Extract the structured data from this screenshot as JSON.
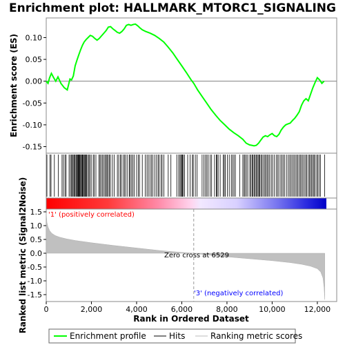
{
  "chart_data": {
    "type": "line",
    "title": "Enrichment plot: HALLMARK_MTORC1_SIGNALING",
    "x_range": [
      0,
      12400
    ],
    "x_ticks": [
      0,
      2000,
      4000,
      6000,
      8000,
      10000,
      12000
    ],
    "x_tick_labels": [
      "0",
      "2,000",
      "4,000",
      "6,000",
      "8,000",
      "10,000",
      "12,000"
    ],
    "xlabel": "Rank in Ordered Dataset",
    "es_panel": {
      "ylabel": "Enrichment score (ES)",
      "ylim": [
        -0.165,
        0.145
      ],
      "y_ticks": [
        -0.15,
        -0.1,
        -0.05,
        0.0,
        0.05,
        0.1
      ],
      "y_tick_labels": [
        "-0.15",
        "-0.10",
        "-0.05",
        "0.00",
        "0.05",
        "0.10"
      ],
      "line_color": "#00ff00",
      "x": [
        0,
        80,
        150,
        230,
        330,
        420,
        520,
        650,
        800,
        930,
        1050,
        1120,
        1200,
        1280,
        1360,
        1440,
        1520,
        1600,
        1680,
        1760,
        1850,
        1950,
        2050,
        2150,
        2250,
        2350,
        2450,
        2550,
        2650,
        2750,
        2850,
        2950,
        3050,
        3150,
        3250,
        3350,
        3450,
        3550,
        3650,
        3750,
        3850,
        3950,
        4050,
        4150,
        4250,
        4400,
        4600,
        4800,
        5000,
        5200,
        5400,
        5600,
        5800,
        6000,
        6200,
        6400,
        6529,
        6700,
        6900,
        7100,
        7300,
        7500,
        7700,
        7900,
        8100,
        8300,
        8500,
        8700,
        8850,
        9000,
        9100,
        9200,
        9300,
        9400,
        9500,
        9600,
        9700,
        9800,
        9900,
        10000,
        10100,
        10200,
        10300,
        10400,
        10500,
        10600,
        10700,
        10800,
        10900,
        11000,
        11100,
        11200,
        11300,
        11400,
        11500,
        11600,
        11700,
        11800,
        11900,
        12000,
        12100,
        12200,
        12300
      ],
      "es": [
        0.0,
        -0.005,
        0.008,
        0.018,
        0.008,
        0.0,
        0.01,
        -0.005,
        -0.015,
        -0.02,
        0.005,
        0.003,
        0.012,
        0.035,
        0.048,
        0.06,
        0.072,
        0.082,
        0.09,
        0.095,
        0.1,
        0.105,
        0.103,
        0.098,
        0.094,
        0.098,
        0.104,
        0.11,
        0.116,
        0.124,
        0.125,
        0.12,
        0.116,
        0.112,
        0.11,
        0.114,
        0.12,
        0.128,
        0.13,
        0.128,
        0.13,
        0.131,
        0.127,
        0.122,
        0.118,
        0.114,
        0.11,
        0.105,
        0.098,
        0.09,
        0.078,
        0.065,
        0.05,
        0.035,
        0.02,
        0.004,
        -0.005,
        -0.02,
        -0.035,
        -0.05,
        -0.065,
        -0.078,
        -0.09,
        -0.1,
        -0.11,
        -0.118,
        -0.125,
        -0.133,
        -0.142,
        -0.146,
        -0.147,
        -0.148,
        -0.147,
        -0.142,
        -0.135,
        -0.128,
        -0.125,
        -0.127,
        -0.123,
        -0.12,
        -0.125,
        -0.127,
        -0.122,
        -0.112,
        -0.105,
        -0.1,
        -0.098,
        -0.096,
        -0.09,
        -0.085,
        -0.078,
        -0.07,
        -0.055,
        -0.045,
        -0.04,
        -0.045,
        -0.03,
        -0.015,
        -0.003,
        0.008,
        0.003,
        -0.005,
        0.0
      ]
    },
    "hits_panel": {
      "label": "Hits",
      "hit_ranks": [
        30,
        170,
        215,
        360,
        530,
        700,
        760,
        830,
        880,
        1010,
        1070,
        1115,
        1160,
        1190,
        1235,
        1275,
        1315,
        1350,
        1380,
        1410,
        1440,
        1460,
        1490,
        1520,
        1560,
        1590,
        1620,
        1650,
        1690,
        1720,
        1760,
        1790,
        1840,
        1890,
        1930,
        1990,
        2080,
        2130,
        2200,
        2330,
        2380,
        2430,
        2490,
        2540,
        2600,
        2650,
        2690,
        2740,
        2790,
        2840,
        2930,
        3010,
        3150,
        3210,
        3280,
        3330,
        3410,
        3470,
        3520,
        3600,
        3680,
        3720,
        3780,
        3840,
        3900,
        4000,
        4080,
        4130,
        4250,
        4380,
        4460,
        4520,
        4590,
        4660,
        4720,
        4800,
        4880,
        4950,
        5000,
        5080,
        5130,
        5210,
        5400,
        5520,
        5780,
        5860,
        5920,
        5960,
        6000,
        6030,
        6070,
        6120,
        6260,
        6370,
        6470,
        6510,
        6600,
        6680,
        6900,
        6980,
        7050,
        7110,
        7170,
        7260,
        7320,
        7450,
        7530,
        7560,
        7610,
        7700,
        7830,
        7880,
        7930,
        8020,
        8100,
        8190,
        8250,
        8310,
        8370,
        8560,
        8700,
        8760,
        8800,
        8860,
        8920,
        9010,
        9060,
        9110,
        9150,
        9200,
        9240,
        9290,
        9330,
        9380,
        9420,
        9460,
        9510,
        9560,
        9620,
        9680,
        9720,
        9780,
        9830,
        9890,
        9960,
        10020,
        10100,
        10180,
        10240,
        10300,
        10380,
        10440,
        10500,
        10560,
        10650,
        10720,
        10780,
        10840,
        10900,
        10960,
        11020,
        11080,
        11130,
        11190,
        11250,
        11300,
        11360,
        11420,
        11480,
        11530,
        11600,
        11650,
        11700,
        11750,
        11800,
        11850,
        11900,
        11970,
        12020,
        12080,
        12140,
        12320
      ]
    },
    "metric_panel": {
      "ylabel": "Ranked list metric (Signal2Noise)",
      "ylim": [
        -1.75,
        1.6
      ],
      "y_ticks": [
        -1.5,
        -1.0,
        -0.5,
        0.0,
        0.5,
        1.0,
        1.5
      ],
      "y_tick_labels": [
        "-1.5",
        "-1.0",
        "-0.5",
        "0.0",
        "0.5",
        "1.0",
        "1.5"
      ],
      "x": [
        0,
        30,
        80,
        150,
        250,
        400,
        600,
        900,
        1300,
        2000,
        3000,
        4000,
        5000,
        6000,
        6529,
        7000,
        8000,
        9000,
        10000,
        10800,
        11300,
        11700,
        12000,
        12150,
        12250,
        12300,
        12330
      ],
      "values": [
        1.47,
        1.12,
        0.95,
        0.82,
        0.72,
        0.64,
        0.58,
        0.52,
        0.46,
        0.38,
        0.28,
        0.19,
        0.1,
        0.03,
        0.0,
        -0.05,
        -0.13,
        -0.2,
        -0.27,
        -0.34,
        -0.4,
        -0.47,
        -0.56,
        -0.68,
        -0.9,
        -1.25,
        -1.68
      ],
      "zero_cross_label": "Zero cross at 6529",
      "zero_cross_rank": 6529,
      "positive_label": "'1' (positively correlated)",
      "negative_label": "'3' (negatively correlated)",
      "positive_color": "#ff0000",
      "negative_color": "#0000ff"
    },
    "legend": {
      "placement": "bottom",
      "entries": [
        {
          "label": "Enrichment profile",
          "color": "#00ff00"
        },
        {
          "label": "Hits",
          "color": "#000000"
        },
        {
          "label": "Ranking metric scores",
          "color": "#bbbbbb"
        }
      ]
    }
  }
}
